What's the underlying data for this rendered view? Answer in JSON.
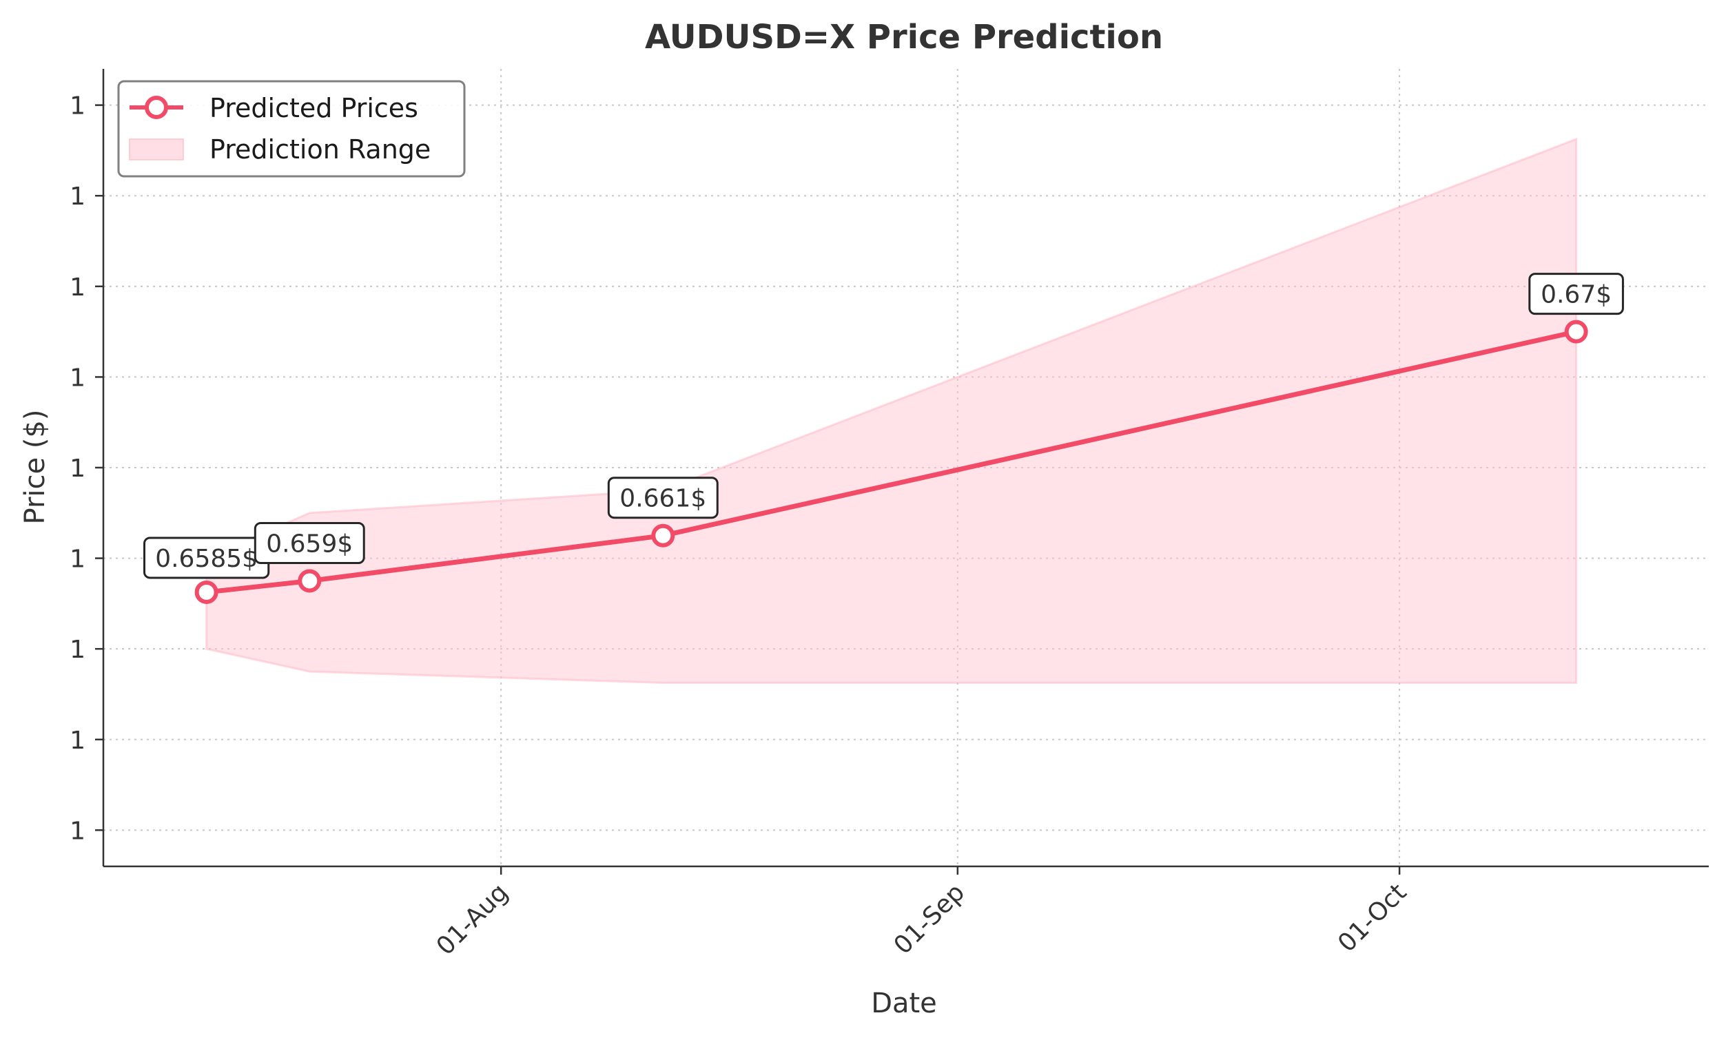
{
  "chart_data": {
    "type": "line",
    "title": "AUDUSD=X Price Prediction",
    "xlabel": "Date",
    "ylabel": "Price ($)",
    "x_ticks": [
      {
        "label": "01-Aug",
        "date": "2024-08-01"
      },
      {
        "label": "01-Sep",
        "date": "2024-09-01"
      },
      {
        "label": "01-Oct",
        "date": "2024-10-01"
      }
    ],
    "y_tick_labels": [
      "1",
      "1",
      "1",
      "1",
      "1",
      "1",
      "1",
      "1",
      "1"
    ],
    "y_ticks": [
      0.648,
      0.652,
      0.656,
      0.66,
      0.664,
      0.668,
      0.672,
      0.676,
      0.68
    ],
    "ylim": [
      0.6464,
      0.6816
    ],
    "xlim": [
      "2024-07-05",
      "2024-10-22"
    ],
    "series": [
      {
        "name": "Predicted Prices",
        "type": "line",
        "color": "#f24b68",
        "points": [
          {
            "x": "2024-07-12",
            "y": 0.6585,
            "label": "0.6585$"
          },
          {
            "x": "2024-07-19",
            "y": 0.659,
            "label": "0.659$"
          },
          {
            "x": "2024-08-12",
            "y": 0.661,
            "label": "0.661$"
          },
          {
            "x": "2024-10-13",
            "y": 0.67,
            "label": "0.67$"
          }
        ]
      },
      {
        "name": "Prediction Range",
        "type": "area",
        "color": "#ffc0cb",
        "points": [
          {
            "x": "2024-07-12",
            "low": 0.656,
            "high": 0.66
          },
          {
            "x": "2024-07-19",
            "low": 0.655,
            "high": 0.662
          },
          {
            "x": "2024-08-12",
            "low": 0.6545,
            "high": 0.663
          },
          {
            "x": "2024-10-13",
            "low": 0.6545,
            "high": 0.6785
          }
        ]
      }
    ],
    "legend_position": "top-left",
    "grid": true
  }
}
